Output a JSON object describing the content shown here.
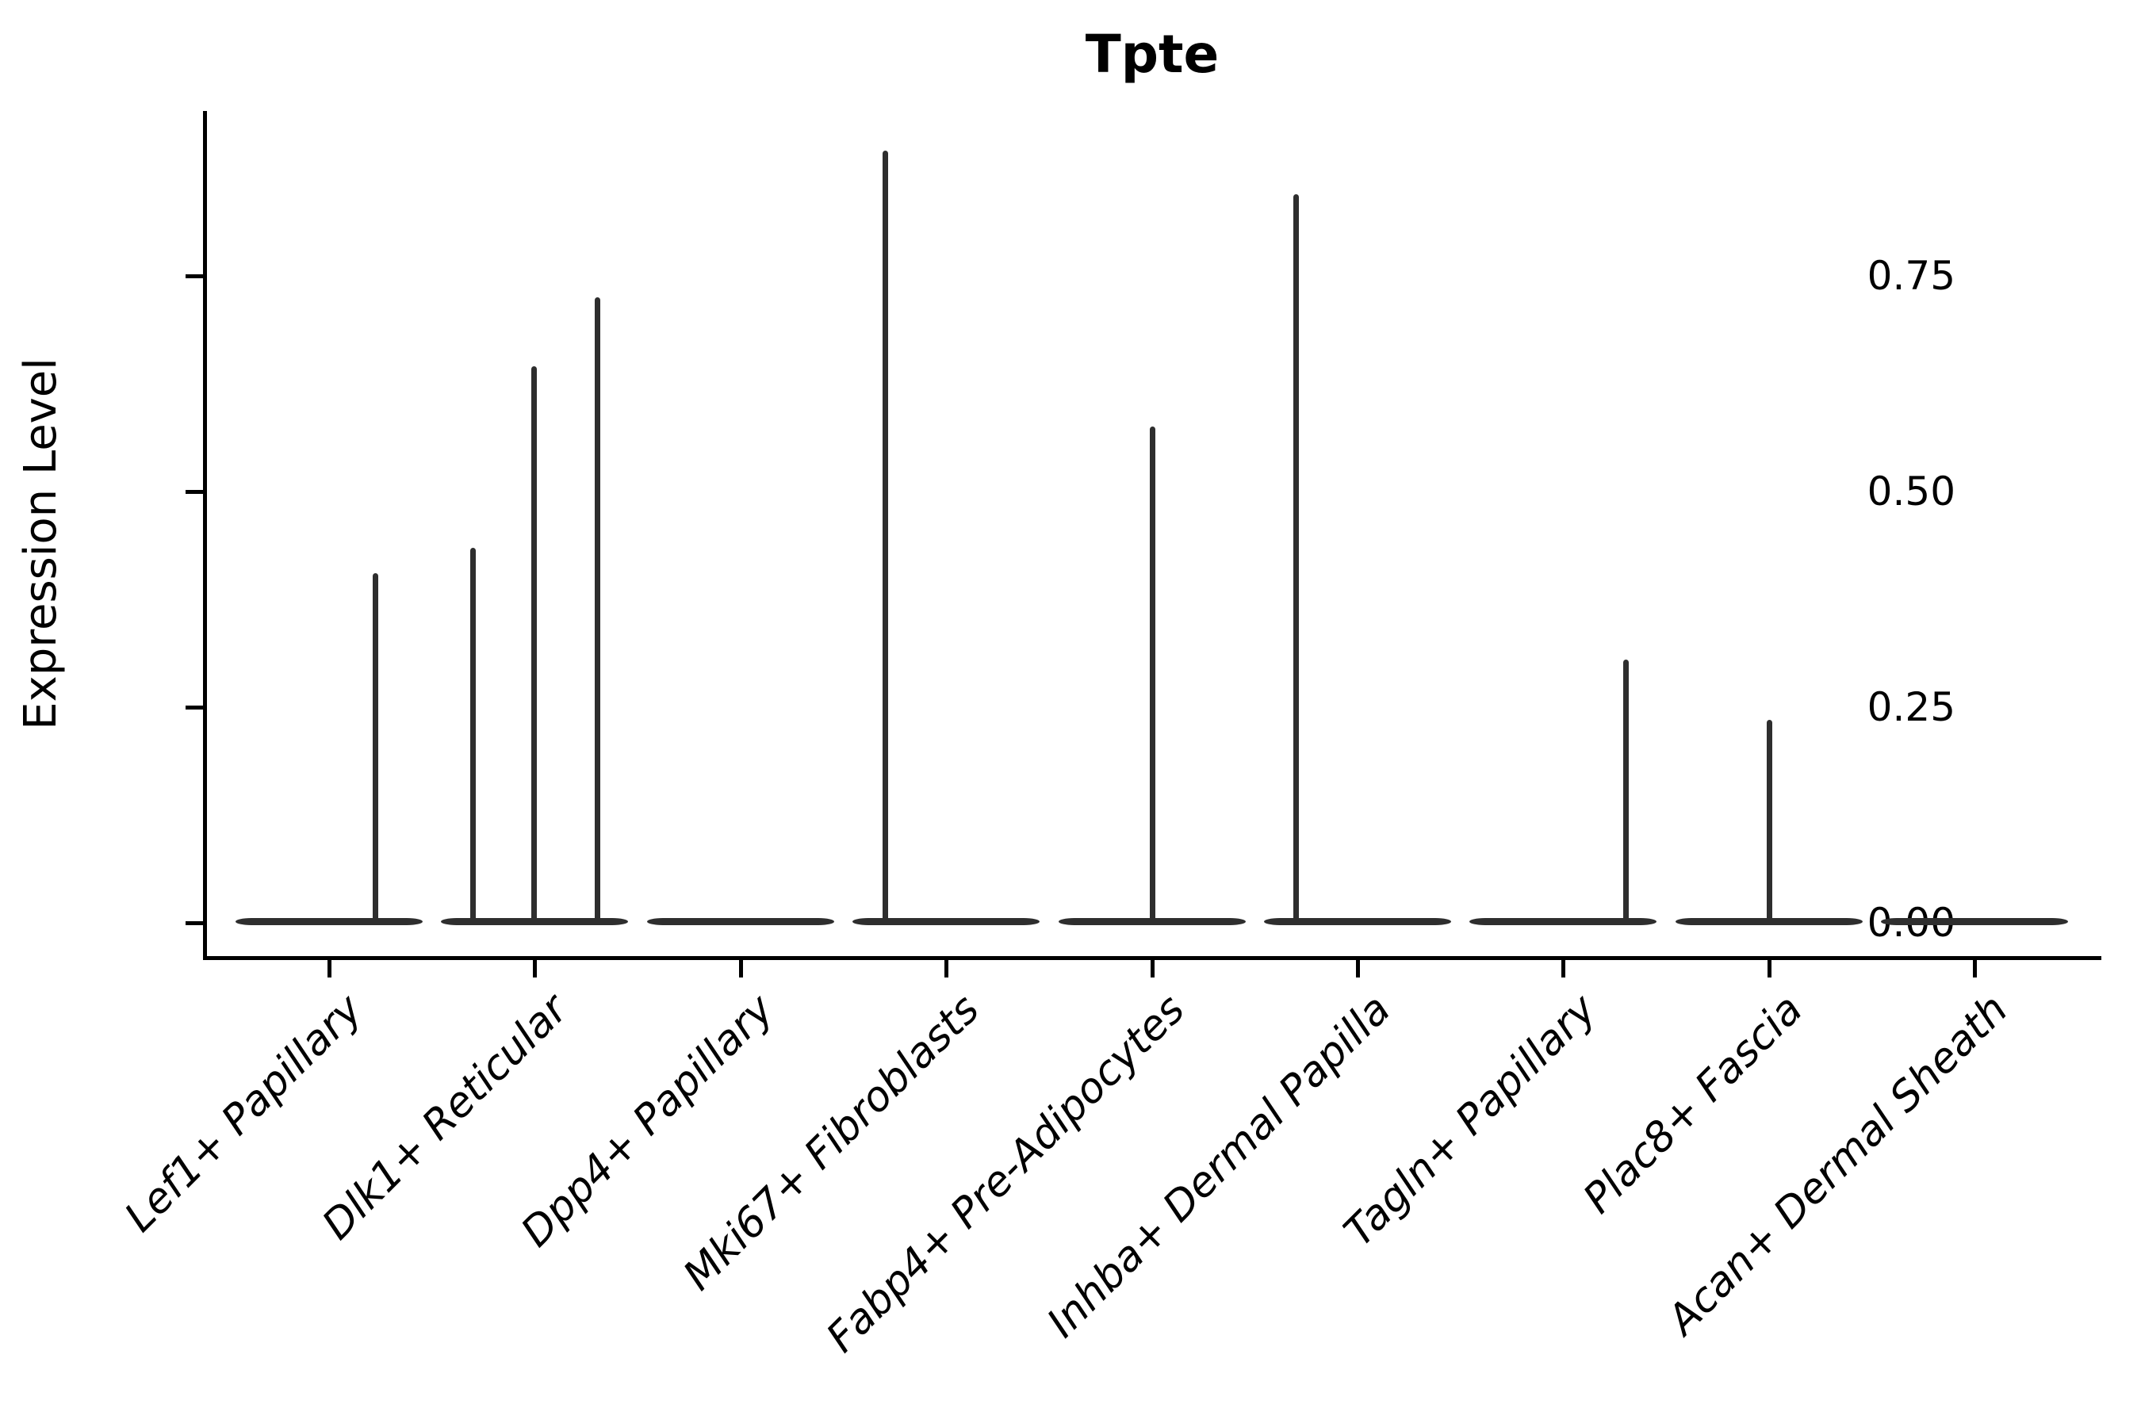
{
  "figure": {
    "background": "#ffffff"
  },
  "chart_data": {
    "type": "violin",
    "title": "Tpte",
    "xlabel": "",
    "ylabel": "Expression Level",
    "legend": "none",
    "grid": false,
    "axis_color": "#000000",
    "violin_color": "#2e2e2e",
    "ylim": [
      -0.04,
      0.94
    ],
    "y_ticks": [
      {
        "value": 0.0,
        "label": "0.00"
      },
      {
        "value": 0.25,
        "label": "0.25"
      },
      {
        "value": 0.5,
        "label": "0.50"
      },
      {
        "value": 0.75,
        "label": "0.75"
      }
    ],
    "categories": [
      {
        "label": "Lef1+ Papillary",
        "spikes": [
          {
            "value": 0.405,
            "offset": 0.224
          }
        ]
      },
      {
        "label": "Dlk1+ Reticular",
        "spikes": [
          {
            "value": 0.435,
            "offset": -0.301
          },
          {
            "value": 0.645,
            "offset": -0.004
          },
          {
            "value": 0.725,
            "offset": 0.305
          }
        ]
      },
      {
        "label": "Dpp4+ Papillary",
        "spikes": []
      },
      {
        "label": "Mki67+ Fibroblasts",
        "spikes": [
          {
            "value": 0.895,
            "offset": -0.297
          }
        ]
      },
      {
        "label": "Fabp4+ Pre-Adipocytes",
        "spikes": [
          {
            "value": 0.575,
            "offset": 0.004
          }
        ]
      },
      {
        "label": "Inhba+ Dermal Papilla",
        "spikes": [
          {
            "value": 0.845,
            "offset": -0.297
          }
        ]
      },
      {
        "label": "Tagln+ Papillary",
        "spikes": [
          {
            "value": 0.305,
            "offset": 0.305
          }
        ]
      },
      {
        "label": "Plac8+ Fascia",
        "spikes": [
          {
            "value": 0.235,
            "offset": 0.004
          }
        ]
      },
      {
        "label": "Acan+ Dermal Sheath",
        "spikes": []
      }
    ]
  }
}
